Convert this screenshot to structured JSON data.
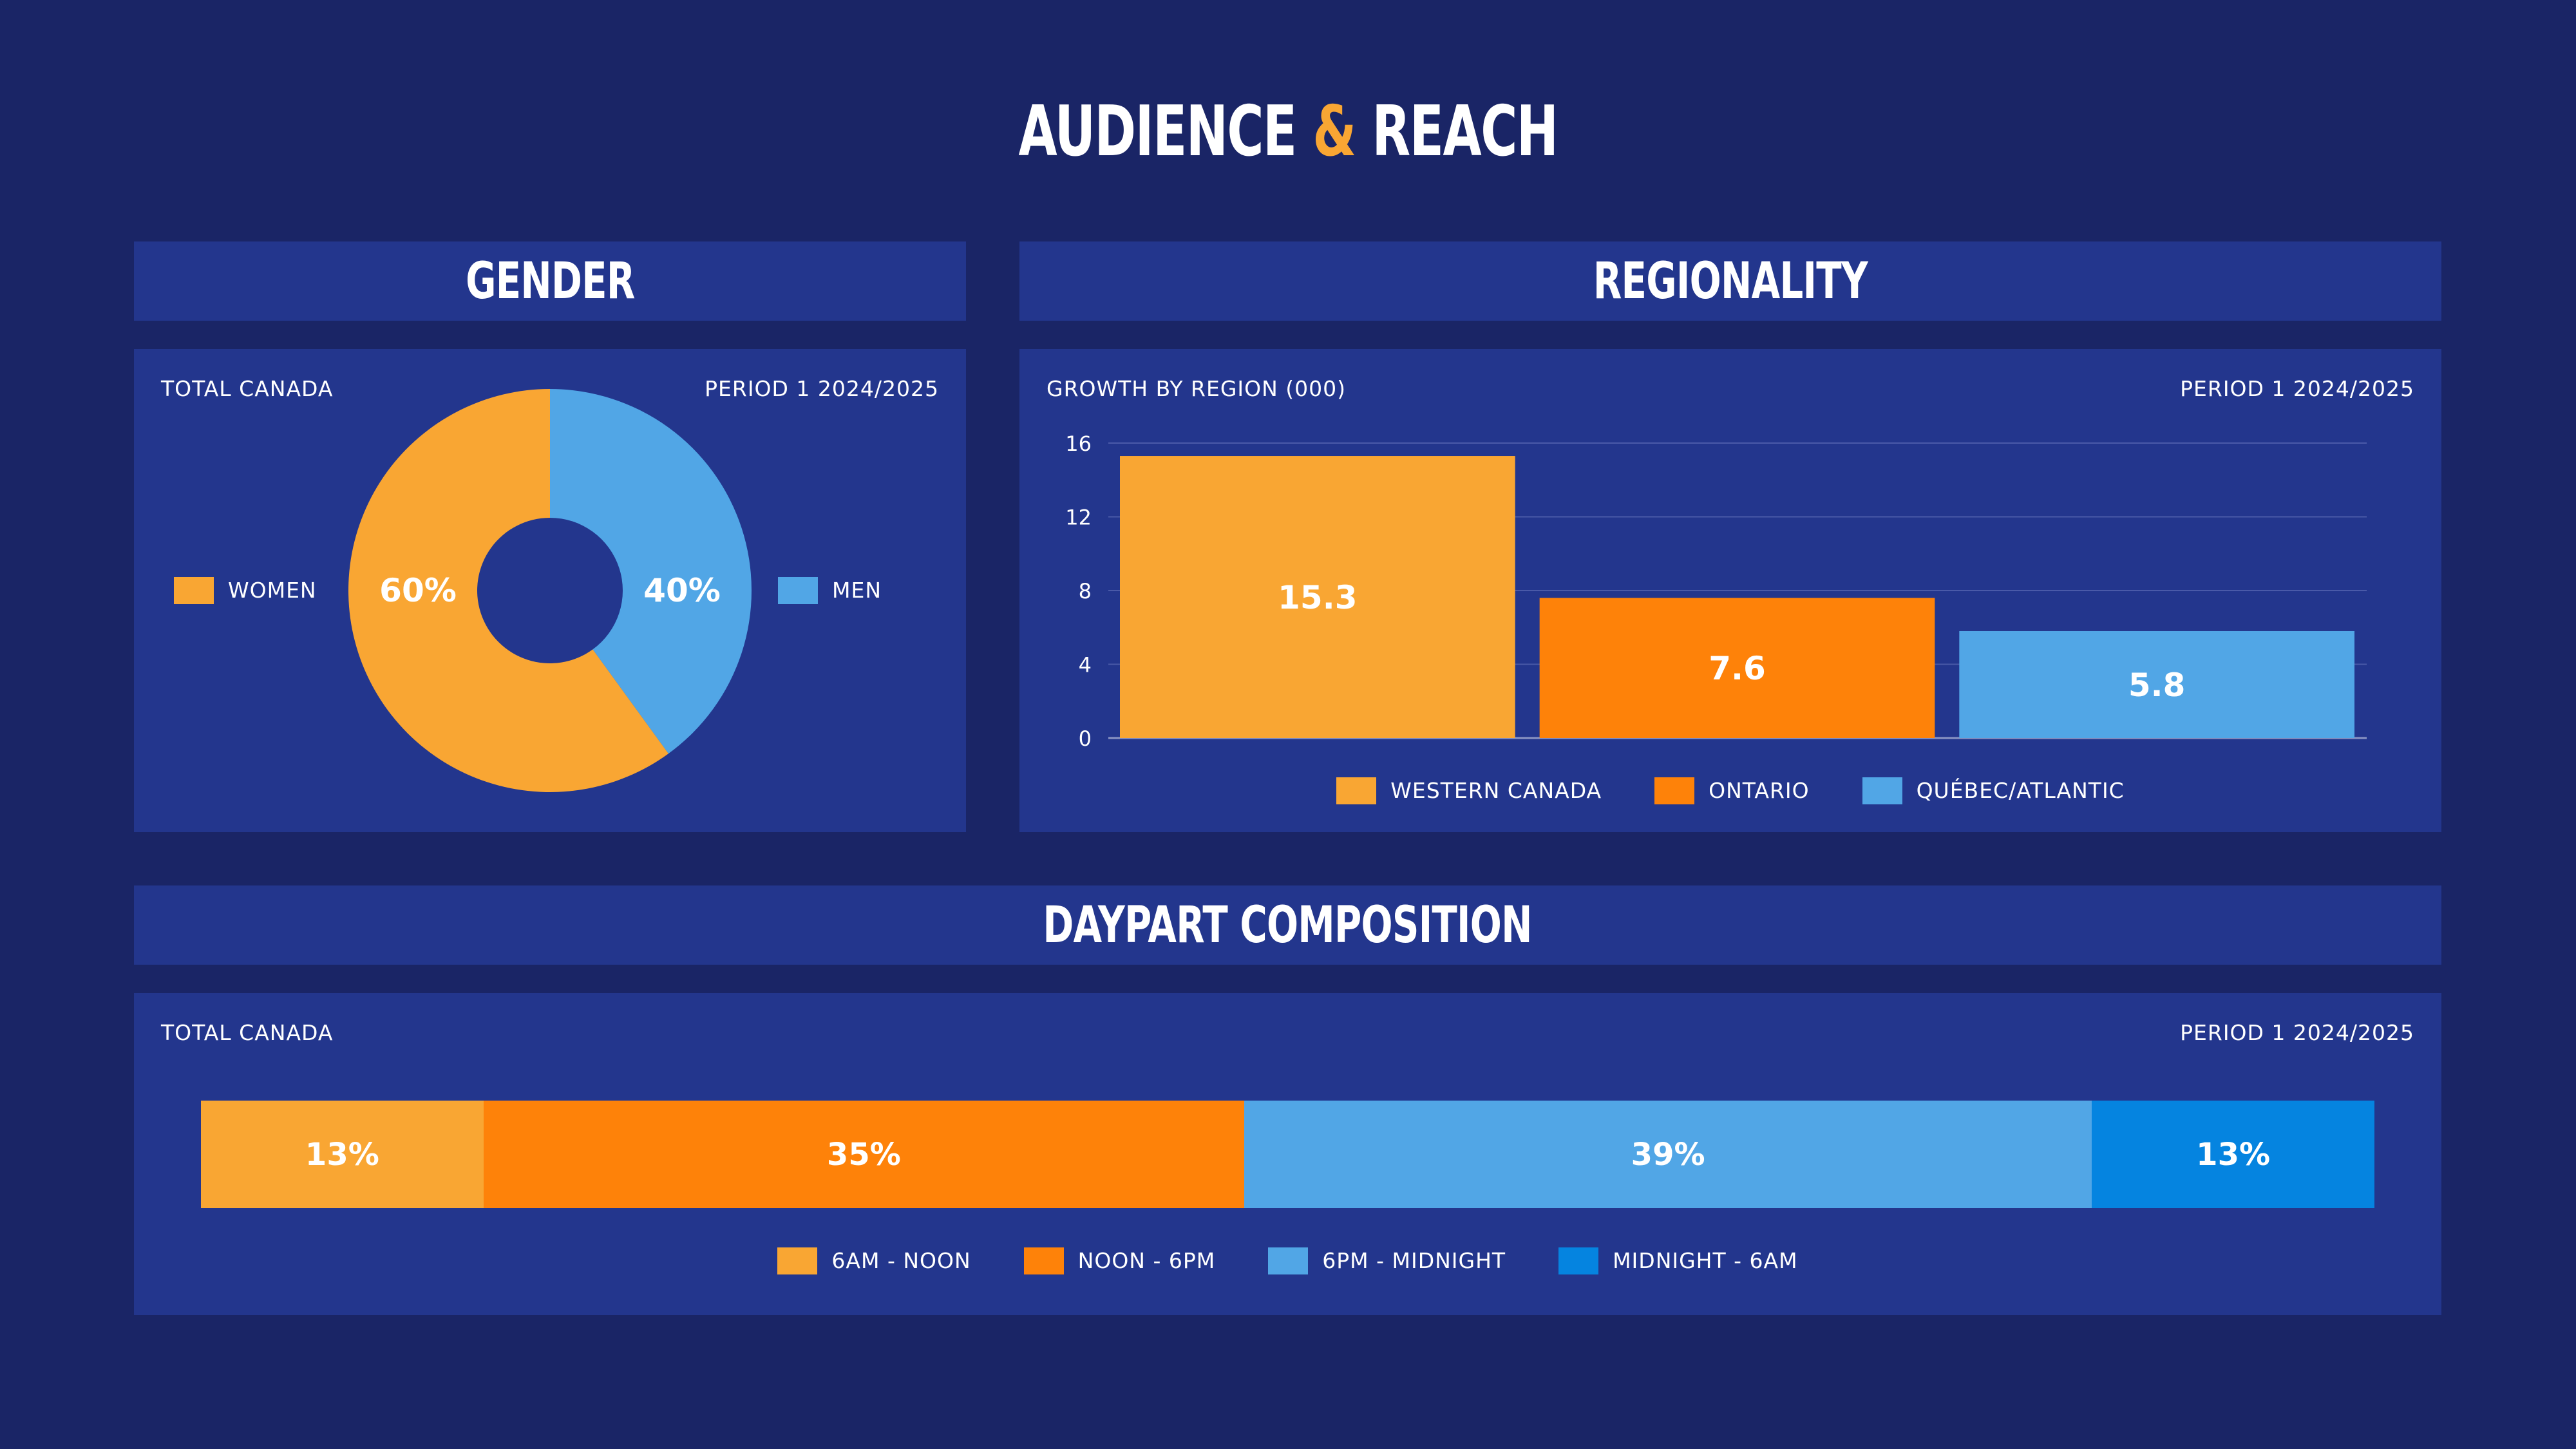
{
  "page": {
    "title_part1": "AUDIENCE",
    "title_amp": "&",
    "title_part2": "REACH"
  },
  "colors": {
    "background": "#1a2566",
    "panel": "#23368d",
    "light_orange": "#f9a633",
    "dark_orange": "#fe8209",
    "light_blue": "#51a6e6",
    "bright_blue": "#0584e0"
  },
  "gender": {
    "header": "GENDER",
    "left_label": "TOTAL CANADA",
    "right_label": "PERIOD 1 2024/2025"
  },
  "regionality": {
    "header": "REGIONALITY",
    "left_label": "GROWTH BY REGION (000)",
    "right_label": "PERIOD 1 2024/2025"
  },
  "daypart": {
    "header": "DAYPART COMPOSITION",
    "left_label": "TOTAL CANADA",
    "right_label": "PERIOD 1 2024/2025"
  },
  "chart_data": [
    {
      "type": "pie",
      "variant": "donut",
      "categories": [
        "WOMEN",
        "MEN"
      ],
      "values": [
        60,
        40
      ],
      "labels": [
        "60%",
        "40%"
      ],
      "colors": [
        "#f9a633",
        "#51a6e6"
      ],
      "legend": [
        {
          "name": "WOMEN",
          "color": "#f9a633"
        },
        {
          "name": "MEN",
          "color": "#51a6e6"
        }
      ],
      "legend_placement": "sides"
    },
    {
      "type": "bar",
      "categories": [
        "WESTERN CANADA",
        "ONTARIO",
        "QUÉBEC/ATLANTIC"
      ],
      "values": [
        15.3,
        7.6,
        5.8
      ],
      "data_labels": [
        "15.3",
        "7.6",
        "5.8"
      ],
      "colors": [
        "#f9a633",
        "#fe8209",
        "#51a6e6"
      ],
      "ylim": [
        0,
        16
      ],
      "yticks": [
        "0",
        "4",
        "8",
        "12",
        "16"
      ],
      "grid": true,
      "legend": [
        {
          "name": "WESTERN CANADA",
          "color": "#f9a633"
        },
        {
          "name": "ONTARIO",
          "color": "#fe8209"
        },
        {
          "name": "QUÉBEC/ATLANTIC",
          "color": "#51a6e6"
        }
      ],
      "legend_placement": "bottom"
    },
    {
      "type": "bar",
      "variant": "stacked-horizontal-100",
      "categories": [
        "6AM - NOON",
        "NOON - 6PM",
        "6PM - MIDNIGHT",
        "MIDNIGHT - 6AM"
      ],
      "values": [
        13,
        35,
        39,
        13
      ],
      "data_labels": [
        "13%",
        "35%",
        "39%",
        "13%"
      ],
      "colors": [
        "#f9a633",
        "#fe8209",
        "#51a6e6",
        "#0584e0"
      ],
      "legend": [
        {
          "name": "6AM - NOON",
          "color": "#f9a633"
        },
        {
          "name": "NOON - 6PM",
          "color": "#fe8209"
        },
        {
          "name": "6PM - MIDNIGHT",
          "color": "#51a6e6"
        },
        {
          "name": "MIDNIGHT - 6AM",
          "color": "#0584e0"
        }
      ],
      "legend_placement": "bottom"
    }
  ]
}
